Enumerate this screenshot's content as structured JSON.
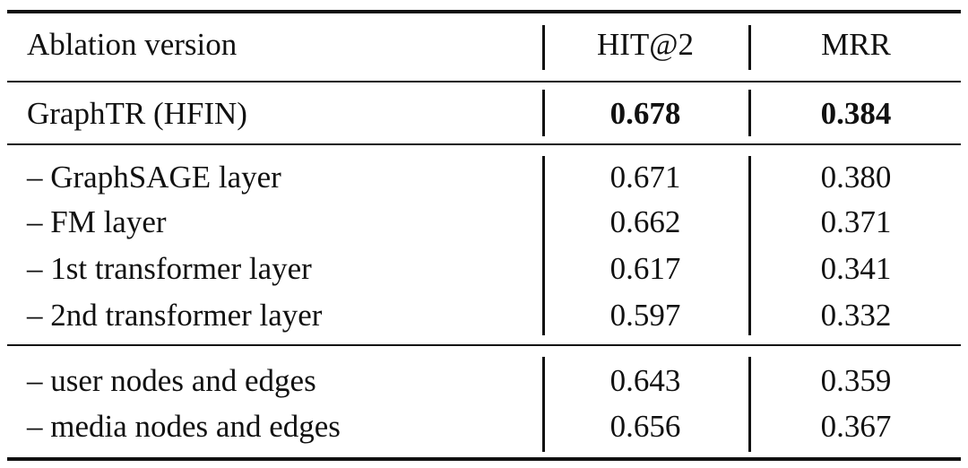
{
  "table": {
    "header": [
      "Ablation version",
      "HIT@2",
      "MRR"
    ],
    "groups": [
      {
        "rows": [
          [
            "GraphTR (HFIN)",
            "0.678",
            "0.384"
          ]
        ]
      },
      {
        "rows": [
          [
            "– GraphSAGE layer",
            "0.671",
            "0.380"
          ],
          [
            "– FM layer",
            "0.662",
            "0.371"
          ],
          [
            "– 1st transformer layer",
            "0.617",
            "0.341"
          ],
          [
            "– 2nd transformer layer",
            "0.597",
            "0.332"
          ]
        ]
      },
      {
        "rows": [
          [
            "– user nodes and edges",
            "0.643",
            "0.359"
          ],
          [
            "– media nodes and edges",
            "0.656",
            "0.367"
          ]
        ]
      }
    ]
  }
}
